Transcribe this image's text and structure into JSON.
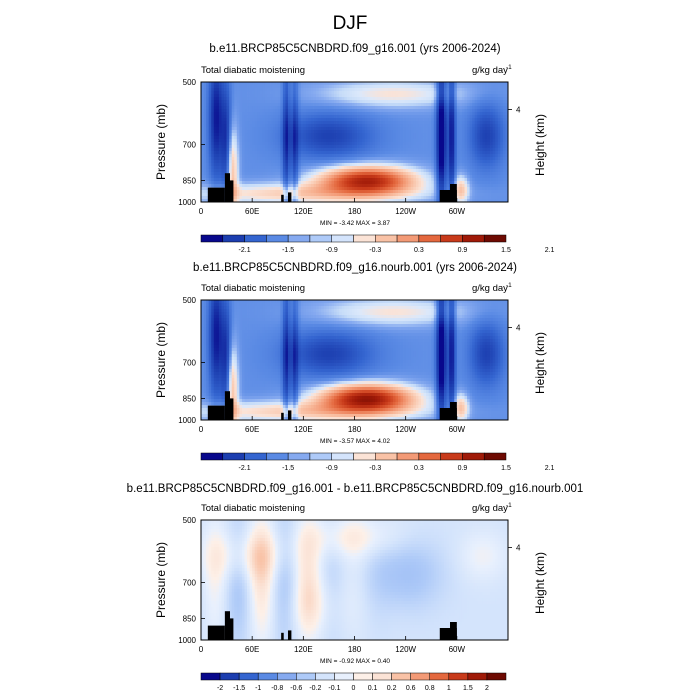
{
  "figure": {
    "title": "DJF"
  },
  "chart_data": [
    {
      "type": "heatmap",
      "title": "b.e11.BRCP85C5CNBDRD.f09_g16.001 (yrs 2006-2024)",
      "left_label": "Total diabatic moistening",
      "units_label": "g/kg day",
      "units_exponent": "-1",
      "ylabel": "Pressure (mb)",
      "ylabel_right": "Height (km)",
      "right_ticks": [
        "4"
      ],
      "x_ticks": [
        "0",
        "60E",
        "120E",
        "180",
        "120W",
        "60W"
      ],
      "y_ticks": [
        "500",
        "700",
        "850",
        "1000"
      ],
      "xlim": [
        0,
        360
      ],
      "ylim": [
        1000,
        500
      ],
      "min_label": "MIN =  -3.42",
      "max_label": "MAX =  3.87",
      "min": -3.42,
      "max": 3.87,
      "colorbar_labels": [
        "-2.1",
        "-1.5",
        "-0.9",
        "-0.3",
        "0.3",
        "0.9",
        "1.5",
        "2.1"
      ],
      "colorbar_colors": [
        "#08088c",
        "#1c3eb0",
        "#3465d0",
        "#5a8ae4",
        "#86aaf0",
        "#aecaf8",
        "#d4e4fc",
        "#fbe3d6",
        "#f9c2a6",
        "#f39a76",
        "#e4683e",
        "#c83a1a",
        "#a01a08",
        "#6e0a02"
      ]
    },
    {
      "type": "heatmap",
      "title": "b.e11.BRCP85C5CNBDRD.f09_g16.nourb.001 (yrs 2006-2024)",
      "left_label": "Total diabatic moistening",
      "units_label": "g/kg day",
      "units_exponent": "-1",
      "ylabel": "Pressure (mb)",
      "ylabel_right": "Height (km)",
      "right_ticks": [
        "4"
      ],
      "x_ticks": [
        "0",
        "60E",
        "120E",
        "180",
        "120W",
        "60W"
      ],
      "y_ticks": [
        "500",
        "700",
        "850",
        "1000"
      ],
      "xlim": [
        0,
        360
      ],
      "ylim": [
        1000,
        500
      ],
      "min_label": "MIN =  -3.57",
      "max_label": "MAX =  4.02",
      "min": -3.57,
      "max": 4.02,
      "colorbar_labels": [
        "-2.1",
        "-1.5",
        "-0.9",
        "-0.3",
        "0.3",
        "0.9",
        "1.5",
        "2.1"
      ],
      "colorbar_colors": [
        "#08088c",
        "#1c3eb0",
        "#3465d0",
        "#5a8ae4",
        "#86aaf0",
        "#aecaf8",
        "#d4e4fc",
        "#fbe3d6",
        "#f9c2a6",
        "#f39a76",
        "#e4683e",
        "#c83a1a",
        "#a01a08",
        "#6e0a02"
      ]
    },
    {
      "type": "heatmap",
      "title": "b.e11.BRCP85C5CNBDRD.f09_g16.001 - b.e11.BRCP85C5CNBDRD.f09_g16.nourb.001",
      "left_label": "Total diabatic moistening",
      "units_label": "g/kg day",
      "units_exponent": "-1",
      "ylabel": "Pressure (mb)",
      "ylabel_right": "Height (km)",
      "right_ticks": [
        "4"
      ],
      "x_ticks": [
        "0",
        "60E",
        "120E",
        "180",
        "120W",
        "60W"
      ],
      "y_ticks": [
        "500",
        "700",
        "850",
        "1000"
      ],
      "xlim": [
        0,
        360
      ],
      "ylim": [
        1000,
        500
      ],
      "min_label": "MIN =  -0.92",
      "max_label": "MAX =  0.40",
      "min": -0.92,
      "max": 0.4,
      "colorbar_labels": [
        "-2",
        "-1.5",
        "-1",
        "-0.8",
        "-0.6",
        "-0.2",
        "-0.1",
        "0",
        "0.1",
        "0.2",
        "0.6",
        "0.8",
        "1",
        "1.5",
        "2"
      ],
      "colorbar_colors": [
        "#08088c",
        "#1c3eb0",
        "#3465d0",
        "#5a8ae4",
        "#86aaf0",
        "#aecaf8",
        "#d4e4fc",
        "#e8f0fd",
        "#fdf0e8",
        "#fbe3d6",
        "#f9c2a6",
        "#f39a76",
        "#e4683e",
        "#c83a1a",
        "#a01a08",
        "#6e0a02"
      ]
    }
  ]
}
